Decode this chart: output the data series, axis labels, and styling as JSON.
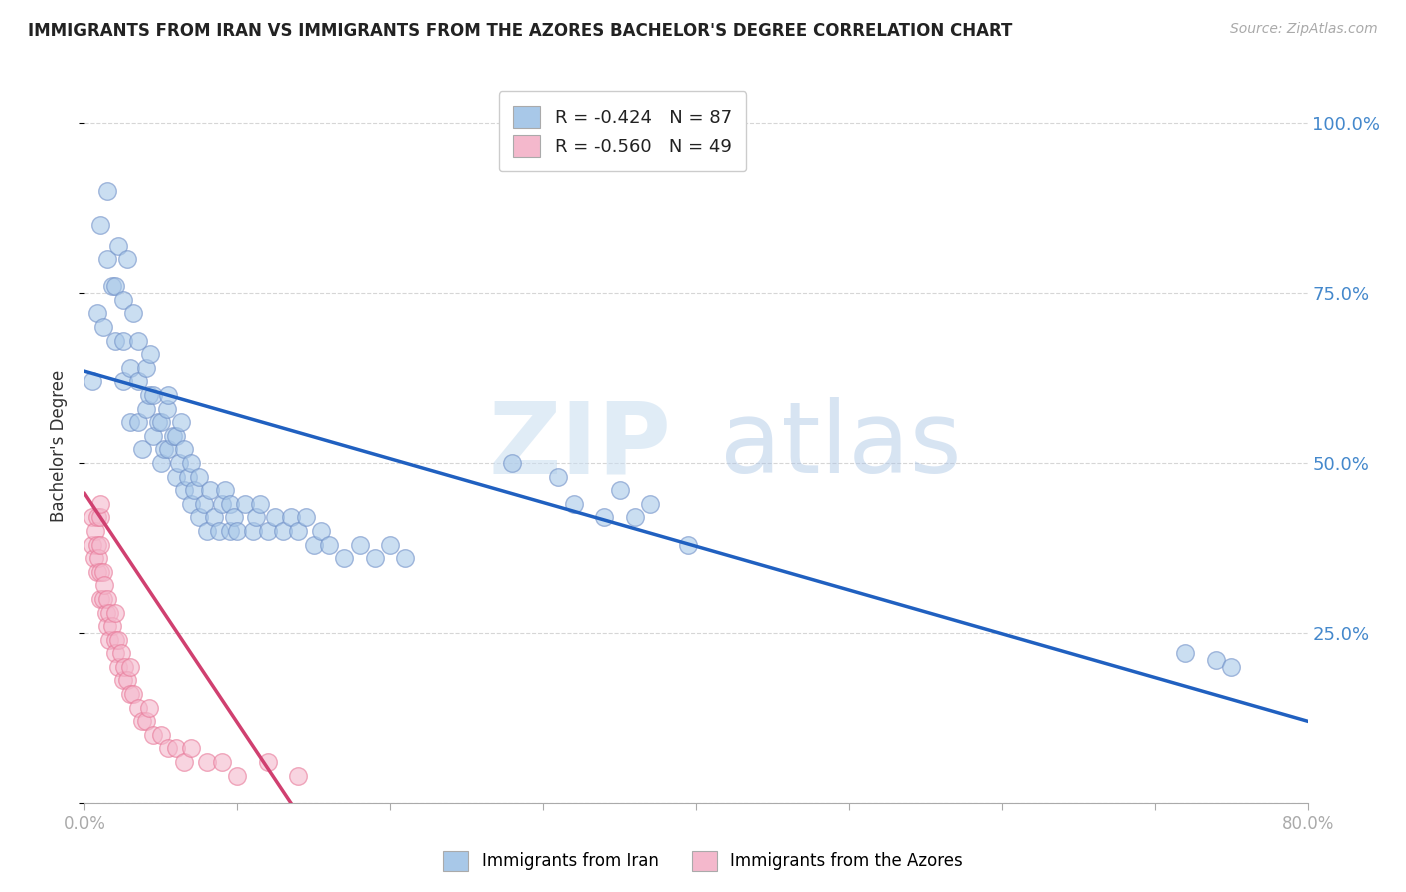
{
  "title": "IMMIGRANTS FROM IRAN VS IMMIGRANTS FROM THE AZORES BACHELOR'S DEGREE CORRELATION CHART",
  "source": "Source: ZipAtlas.com",
  "ylabel": "Bachelor's Degree",
  "xlim": [
    0.0,
    0.8
  ],
  "ylim": [
    0.0,
    1.05
  ],
  "x_ticks": [
    0.0,
    0.1,
    0.2,
    0.3,
    0.4,
    0.5,
    0.6,
    0.7,
    0.8
  ],
  "x_tick_labels": [
    "0.0%",
    "",
    "",
    "",
    "",
    "",
    "",
    "",
    "80.0%"
  ],
  "y_ticks": [
    0.0,
    0.25,
    0.5,
    0.75,
    1.0
  ],
  "y_tick_labels": [
    "",
    "25.0%",
    "50.0%",
    "75.0%",
    "100.0%"
  ],
  "iran_R": "-0.424",
  "iran_N": "87",
  "azores_R": "-0.560",
  "azores_N": "49",
  "iran_color": "#a8c8e8",
  "azores_color": "#f4b8cc",
  "iran_edge_color": "#7090c8",
  "azores_edge_color": "#e87898",
  "iran_line_color": "#2060c0",
  "azores_line_color": "#d04070",
  "iran_line_x0": 0.0,
  "iran_line_y0": 0.635,
  "iran_line_x1": 0.8,
  "iran_line_y1": 0.12,
  "azores_line_x0": 0.0,
  "azores_line_y0": 0.455,
  "azores_line_x1": 0.135,
  "azores_line_y1": 0.0,
  "iran_scatter_x": [
    0.005,
    0.008,
    0.01,
    0.012,
    0.015,
    0.015,
    0.018,
    0.02,
    0.02,
    0.022,
    0.025,
    0.025,
    0.025,
    0.028,
    0.03,
    0.03,
    0.032,
    0.035,
    0.035,
    0.035,
    0.038,
    0.04,
    0.04,
    0.042,
    0.043,
    0.045,
    0.045,
    0.048,
    0.05,
    0.05,
    0.052,
    0.054,
    0.055,
    0.055,
    0.058,
    0.06,
    0.06,
    0.062,
    0.063,
    0.065,
    0.065,
    0.068,
    0.07,
    0.07,
    0.072,
    0.075,
    0.075,
    0.078,
    0.08,
    0.082,
    0.085,
    0.088,
    0.09,
    0.092,
    0.095,
    0.095,
    0.098,
    0.1,
    0.105,
    0.11,
    0.112,
    0.115,
    0.12,
    0.125,
    0.13,
    0.135,
    0.14,
    0.145,
    0.15,
    0.155,
    0.16,
    0.17,
    0.18,
    0.19,
    0.2,
    0.21,
    0.28,
    0.31,
    0.32,
    0.34,
    0.35,
    0.36,
    0.37,
    0.395,
    0.72,
    0.74,
    0.75
  ],
  "iran_scatter_y": [
    0.62,
    0.72,
    0.85,
    0.7,
    0.8,
    0.9,
    0.76,
    0.68,
    0.76,
    0.82,
    0.62,
    0.68,
    0.74,
    0.8,
    0.56,
    0.64,
    0.72,
    0.56,
    0.62,
    0.68,
    0.52,
    0.58,
    0.64,
    0.6,
    0.66,
    0.54,
    0.6,
    0.56,
    0.5,
    0.56,
    0.52,
    0.58,
    0.52,
    0.6,
    0.54,
    0.48,
    0.54,
    0.5,
    0.56,
    0.46,
    0.52,
    0.48,
    0.44,
    0.5,
    0.46,
    0.42,
    0.48,
    0.44,
    0.4,
    0.46,
    0.42,
    0.4,
    0.44,
    0.46,
    0.4,
    0.44,
    0.42,
    0.4,
    0.44,
    0.4,
    0.42,
    0.44,
    0.4,
    0.42,
    0.4,
    0.42,
    0.4,
    0.42,
    0.38,
    0.4,
    0.38,
    0.36,
    0.38,
    0.36,
    0.38,
    0.36,
    0.5,
    0.48,
    0.44,
    0.42,
    0.46,
    0.42,
    0.44,
    0.38,
    0.22,
    0.21,
    0.2
  ],
  "azores_scatter_x": [
    0.005,
    0.005,
    0.006,
    0.007,
    0.008,
    0.008,
    0.008,
    0.009,
    0.01,
    0.01,
    0.01,
    0.01,
    0.01,
    0.012,
    0.012,
    0.013,
    0.014,
    0.015,
    0.015,
    0.016,
    0.016,
    0.018,
    0.02,
    0.02,
    0.02,
    0.022,
    0.022,
    0.024,
    0.025,
    0.026,
    0.028,
    0.03,
    0.03,
    0.032,
    0.035,
    0.038,
    0.04,
    0.042,
    0.045,
    0.05,
    0.055,
    0.06,
    0.065,
    0.07,
    0.08,
    0.09,
    0.1,
    0.12,
    0.14
  ],
  "azores_scatter_y": [
    0.42,
    0.38,
    0.36,
    0.4,
    0.34,
    0.38,
    0.42,
    0.36,
    0.3,
    0.34,
    0.38,
    0.42,
    0.44,
    0.3,
    0.34,
    0.32,
    0.28,
    0.26,
    0.3,
    0.24,
    0.28,
    0.26,
    0.24,
    0.28,
    0.22,
    0.24,
    0.2,
    0.22,
    0.18,
    0.2,
    0.18,
    0.16,
    0.2,
    0.16,
    0.14,
    0.12,
    0.12,
    0.14,
    0.1,
    0.1,
    0.08,
    0.08,
    0.06,
    0.08,
    0.06,
    0.06,
    0.04,
    0.06,
    0.04
  ],
  "background_color": "#ffffff",
  "grid_color": "#cccccc"
}
